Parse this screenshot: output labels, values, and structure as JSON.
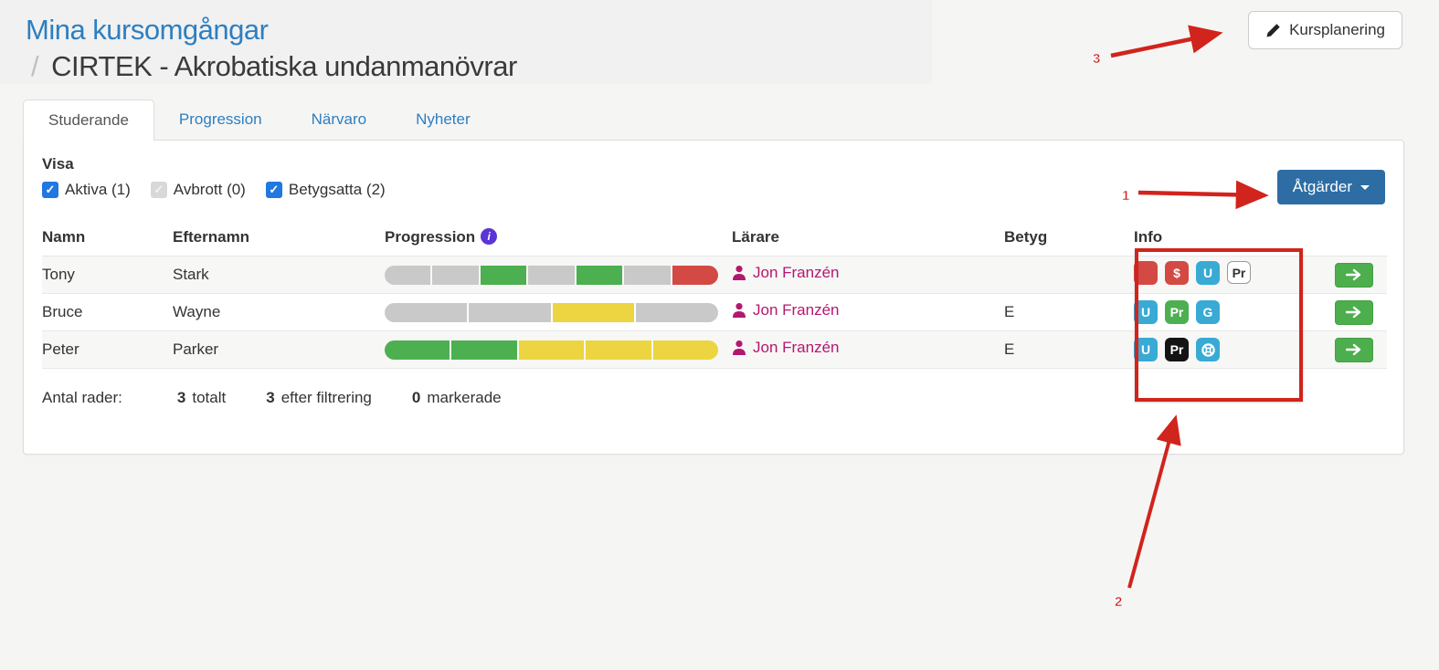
{
  "page": {
    "title": "Mina kursomgångar",
    "breadcrumb_separator": "/",
    "breadcrumb_current": "CIRTEK - Akrobatiska undanmanövrar"
  },
  "header": {
    "kursplanering_label": "Kursplanering"
  },
  "tabs": [
    {
      "label": "Studerande",
      "active": true
    },
    {
      "label": "Progression",
      "active": false
    },
    {
      "label": "Närvaro",
      "active": false
    },
    {
      "label": "Nyheter",
      "active": false
    }
  ],
  "filters": {
    "label": "Visa",
    "checkboxes": [
      {
        "label": "Aktiva (1)",
        "checked": true,
        "disabled": false
      },
      {
        "label": "Avbrott (0)",
        "checked": true,
        "disabled": true
      },
      {
        "label": "Betygsatta (2)",
        "checked": true,
        "disabled": false
      }
    ]
  },
  "actions": {
    "button_label": "Åtgärder"
  },
  "table": {
    "headers": {
      "namn": "Namn",
      "efternamn": "Efternamn",
      "progression": "Progression",
      "larare": "Lärare",
      "betyg": "Betyg",
      "info": "Info"
    },
    "rows": [
      {
        "namn": "Tony",
        "efternamn": "Stark",
        "progression_segments": [
          "gray",
          "gray",
          "green",
          "gray",
          "green",
          "gray",
          "red"
        ],
        "larare": "Jon Franzén",
        "betyg": "",
        "badges": [
          {
            "type": "red",
            "text": ""
          },
          {
            "type": "red",
            "text": "$"
          },
          {
            "type": "blue",
            "text": "U"
          },
          {
            "type": "outline",
            "text": "Pr"
          }
        ]
      },
      {
        "namn": "Bruce",
        "efternamn": "Wayne",
        "progression_segments": [
          "gray",
          "gray",
          "yellow",
          "gray"
        ],
        "larare": "Jon Franzén",
        "betyg": "E",
        "badges": [
          {
            "type": "blue",
            "text": "U"
          },
          {
            "type": "green",
            "text": "Pr"
          },
          {
            "type": "blue",
            "text": "G"
          }
        ]
      },
      {
        "namn": "Peter",
        "efternamn": "Parker",
        "progression_segments": [
          "green",
          "green",
          "yellow",
          "yellow",
          "yellow"
        ],
        "larare": "Jon Franzén",
        "betyg": "E",
        "badges": [
          {
            "type": "blue",
            "text": "U"
          },
          {
            "type": "black",
            "text": "Pr"
          },
          {
            "type": "blue",
            "text": "",
            "icon": "life-ring"
          }
        ]
      }
    ]
  },
  "footer": {
    "label": "Antal rader:",
    "total_count": "3",
    "total_label": "totalt",
    "filtered_count": "3",
    "filtered_label": "efter filtrering",
    "marked_count": "0",
    "marked_label": "markerade"
  },
  "annotations": {
    "labels": [
      "1",
      "2",
      "3"
    ]
  },
  "colors": {
    "segment_gray": "#c9c9c9",
    "segment_green": "#4caf50",
    "segment_yellow": "#ecd540",
    "segment_red": "#d24a43",
    "badge_red": "#d24a43",
    "badge_blue": "#39aad4",
    "badge_green": "#4caf50",
    "badge_black": "#141414",
    "teacher_pink": "#b5176e",
    "primary_button": "#2e6da4",
    "annotation_red": "#cc1f1f"
  }
}
